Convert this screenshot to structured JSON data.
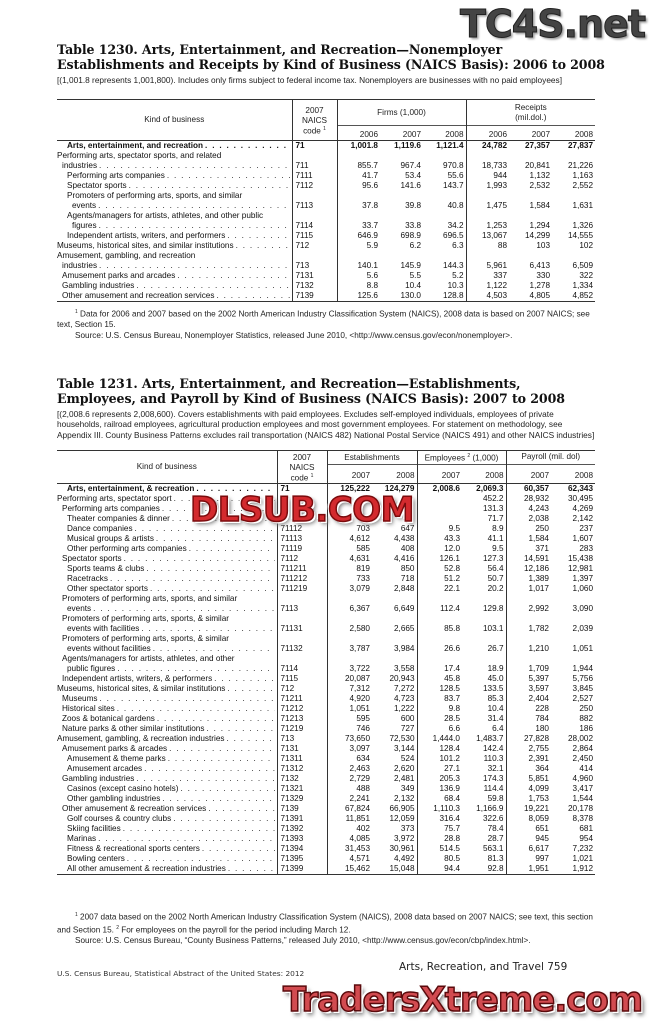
{
  "t1230": {
    "title_line1": "Table 1230. Arts, Entertainment, and Recreation—Nonemployer",
    "title_line2": "Establishments and Receipts by Kind of Business (NAICS Basis): 2006 to 2008",
    "headnote": "[(1,001.8 represents 1,001,800). Includes only firms subject to federal income tax. Nonemployers are businesses with no  paid employees]",
    "headers": {
      "kind": "Kind of business",
      "code_l1": "2007",
      "code_l2": "NAICS",
      "code_l3": "code",
      "code_sup": "1",
      "group1": "Firms (1,000)",
      "group2_l1": "Receipts",
      "group2_l2": "(mil.dol.)",
      "years": [
        "2006",
        "2007",
        "2008",
        "2006",
        "2007",
        "2008"
      ]
    },
    "rows": [
      {
        "label": "Arts, entertainment, and recreation",
        "code": "71",
        "v": [
          "1,001.8",
          "1,119.6",
          "1,121.4",
          "24,782",
          "27,357",
          "27,837"
        ],
        "lvl": 2,
        "bold": true
      },
      {
        "pre": "Performing arts, spectator sports, and related",
        "label": "industries",
        "code": "711",
        "v": [
          "855.7",
          "967.4",
          "970.8",
          "18,733",
          "20,841",
          "21,226"
        ],
        "lvl": 0
      },
      {
        "label": "Performing arts companies",
        "code": "7111",
        "v": [
          "41.7",
          "53.4",
          "55.6",
          "944",
          "1,132",
          "1,163"
        ],
        "lvl": 2
      },
      {
        "label": "Spectator sports",
        "code": "7112",
        "v": [
          "95.6",
          "141.6",
          "143.7",
          "1,993",
          "2,532",
          "2,552"
        ],
        "lvl": 2
      },
      {
        "pre": "Promoters of performing arts, sports, and similar",
        "label": "events",
        "code": "7113",
        "v": [
          "37.8",
          "39.8",
          "40.8",
          "1,475",
          "1,584",
          "1,631"
        ],
        "lvl": 2
      },
      {
        "pre": "Agents/managers for artists, athletes, and other public",
        "label": "figures",
        "code": "7114",
        "v": [
          "33.7",
          "33.8",
          "34.2",
          "1,253",
          "1,294",
          "1,326"
        ],
        "lvl": 2
      },
      {
        "label": "Independent artists, writers, and performers",
        "code": "7115",
        "v": [
          "646.9",
          "698.9",
          "696.5",
          "13,067",
          "14,299",
          "14,555"
        ],
        "lvl": 2
      },
      {
        "label": "Museums, historical sites, and similar institutions",
        "code": "712",
        "v": [
          "5.9",
          "6.2",
          "6.3",
          "88",
          "103",
          "102"
        ],
        "lvl": 0
      },
      {
        "pre": "Amusement, gambling, and recreation",
        "label": "industries",
        "code": "713",
        "v": [
          "140.1",
          "145.9",
          "144.3",
          "5,961",
          "6,413",
          "6,509"
        ],
        "lvl": 0
      },
      {
        "label": "Amusement parks and arcades",
        "code": "7131",
        "v": [
          "5.6",
          "5.5",
          "5.2",
          "337",
          "330",
          "322"
        ],
        "lvl": 1
      },
      {
        "label": "Gambling industries",
        "code": "7132",
        "v": [
          "8.8",
          "10.4",
          "10.3",
          "1,122",
          "1,278",
          "1,334"
        ],
        "lvl": 1
      },
      {
        "label": "Other amusement and recreation services",
        "code": "7139",
        "v": [
          "125.6",
          "130.0",
          "128.8",
          "4,503",
          "4,805",
          "4,852"
        ],
        "lvl": 1
      }
    ],
    "footnote1_sup": "1",
    "footnote1": " Data for 2006 and 2007 based on the 2002 North American Industry Classification System (NAICS), 2008 data is based on 2007 NAICS; see text, Section 15.",
    "source": "Source: U.S. Census Bureau, Nonemployer Statistics, released June 2010, <http://www.census.gov/econ/nonemployer>."
  },
  "t1231": {
    "title_line1": "Table 1231. Arts, Entertainment, and Recreation—Establishments,",
    "title_line2": "Employees, and Payroll by Kind of Business (NAICS Basis): 2007 to 2008",
    "headnote": "[(2,008.6 represents 2,008,600). Covers establishments with paid employees. Excludes self-employed individuals, employees of private households, railroad employees, agricultural production employees and most government employees. For statement on methodology, see Appendix III. County Business Patterns excludes rail transportation (NAICS 482) National Postal Service (NAICS 491) and other NAICS industries]",
    "headers": {
      "kind": "Kind of business",
      "code_l1": "2007",
      "code_l2": "NAICS",
      "code_l3": "code",
      "code_sup": "1",
      "group1": "Establishments",
      "group2": "Employees",
      "group2_sup": "2",
      "group2_unit": "(1,000)",
      "group3": "Payroll (mil. dol)",
      "years": [
        "2007",
        "2008",
        "2007",
        "2008",
        "2007",
        "2008"
      ]
    },
    "rows": [
      {
        "label": "Arts, entertainment, & recreation",
        "code": "71",
        "v": [
          "125,222",
          "124,279",
          "2,008.6",
          "2,069.3",
          "60,357",
          "62,343"
        ],
        "lvl": 2,
        "bold": true
      },
      {
        "label": "Performing arts, spectator sport",
        "code": "",
        "v": [
          "",
          "",
          "",
          "452.2",
          "28,932",
          "30,495"
        ],
        "lvl": 0
      },
      {
        "label": "Performing arts companies",
        "code": "",
        "v": [
          "",
          "",
          "",
          "131.3",
          "4,243",
          "4,269"
        ],
        "lvl": 1
      },
      {
        "label": "Theater companies & dinner",
        "code": "",
        "v": [
          "",
          "",
          "",
          "71.7",
          "2,038",
          "2,142"
        ],
        "lvl": 2
      },
      {
        "label": "Dance companies",
        "code": "71112",
        "v": [
          "703",
          "647",
          "9.5",
          "8.9",
          "250",
          "237"
        ],
        "lvl": 2
      },
      {
        "label": "Musical groups & artists",
        "code": "71113",
        "v": [
          "4,612",
          "4,438",
          "43.3",
          "41.1",
          "1,584",
          "1,607"
        ],
        "lvl": 2
      },
      {
        "label": "Other performing arts companies",
        "code": "71119",
        "v": [
          "585",
          "408",
          "12.0",
          "9.5",
          "371",
          "283"
        ],
        "lvl": 2
      },
      {
        "label": "Spectator sports",
        "code": "7112",
        "v": [
          "4,631",
          "4,416",
          "126.1",
          "127.3",
          "14,591",
          "15,438"
        ],
        "lvl": 1
      },
      {
        "label": "Sports teams & clubs",
        "code": "711211",
        "v": [
          "819",
          "850",
          "52.8",
          "56.4",
          "12,186",
          "12,981"
        ],
        "lvl": 2
      },
      {
        "label": "Racetracks",
        "code": "711212",
        "v": [
          "733",
          "718",
          "51.2",
          "50.7",
          "1,389",
          "1,397"
        ],
        "lvl": 2
      },
      {
        "label": "Other spectator sports",
        "code": "711219",
        "v": [
          "3,079",
          "2,848",
          "22.1",
          "20.2",
          "1,017",
          "1,060"
        ],
        "lvl": 2
      },
      {
        "pre": "Promoters of performing arts, sports, and similar",
        "label": "events",
        "code": "7113",
        "v": [
          "6,367",
          "6,649",
          "112.4",
          "129.8",
          "2,992",
          "3,090"
        ],
        "lvl": 1
      },
      {
        "pre": "Promoters of performing arts, sports, & similar",
        "label": "events with facilities",
        "code": "71131",
        "v": [
          "2,580",
          "2,665",
          "85.8",
          "103.1",
          "1,782",
          "2,039"
        ],
        "lvl": 1
      },
      {
        "pre": "Promoters of performing arts, sports, & similar",
        "label": "events without facilities",
        "code": "71132",
        "v": [
          "3,787",
          "3,984",
          "26.6",
          "26.7",
          "1,210",
          "1,051"
        ],
        "lvl": 1
      },
      {
        "pre": "Agents/managers for artists, athletes, and other",
        "label": "public figures",
        "code": "7114",
        "v": [
          "3,722",
          "3,558",
          "17.4",
          "18.9",
          "1,709",
          "1,944"
        ],
        "lvl": 1
      },
      {
        "label": "Independent artists, writers, & performers",
        "code": "7115",
        "v": [
          "20,087",
          "20,943",
          "45.8",
          "45.0",
          "5,397",
          "5,756"
        ],
        "lvl": 1
      },
      {
        "label": "Museums, historical sites, & similar institutions",
        "code": "712",
        "v": [
          "7,312",
          "7,272",
          "128.5",
          "133.5",
          "3,597",
          "3,845"
        ],
        "lvl": 0
      },
      {
        "label": "Museums",
        "code": "71211",
        "v": [
          "4,920",
          "4,723",
          "83.7",
          "85.3",
          "2,404",
          "2,527"
        ],
        "lvl": 1
      },
      {
        "label": "Historical sites",
        "code": "71212",
        "v": [
          "1,051",
          "1,222",
          "9.8",
          "10.4",
          "228",
          "250"
        ],
        "lvl": 1
      },
      {
        "label": "Zoos & botanical gardens",
        "code": "71213",
        "v": [
          "595",
          "600",
          "28.5",
          "31.4",
          "784",
          "882"
        ],
        "lvl": 1
      },
      {
        "label": "Nature parks & other similar institutions",
        "code": "71219",
        "v": [
          "746",
          "727",
          "6.6",
          "6.4",
          "180",
          "186"
        ],
        "lvl": 1
      },
      {
        "label": "Amusement, gambling, & recreation industries",
        "code": "713",
        "v": [
          "73,650",
          "72,530",
          "1,444.0",
          "1,483.7",
          "27,828",
          "28,002"
        ],
        "lvl": 0
      },
      {
        "label": "Amusement parks & arcades",
        "code": "7131",
        "v": [
          "3,097",
          "3,144",
          "128.4",
          "142.4",
          "2,755",
          "2,864"
        ],
        "lvl": 1
      },
      {
        "label": "Amusement & theme parks",
        "code": "71311",
        "v": [
          "634",
          "524",
          "101.2",
          "110.3",
          "2,391",
          "2,450"
        ],
        "lvl": 2
      },
      {
        "label": "Amusement arcades",
        "code": "71312",
        "v": [
          "2,463",
          "2,620",
          "27.1",
          "32.1",
          "364",
          "414"
        ],
        "lvl": 2
      },
      {
        "label": "Gambling industries",
        "code": "7132",
        "v": [
          "2,729",
          "2,481",
          "205.3",
          "174.3",
          "5,851",
          "4,960"
        ],
        "lvl": 1
      },
      {
        "label": "Casinos (except casino hotels)",
        "code": "71321",
        "v": [
          "488",
          "349",
          "136.9",
          "114.4",
          "4,099",
          "3,417"
        ],
        "lvl": 2
      },
      {
        "label": "Other gambling industries",
        "code": "71329",
        "v": [
          "2,241",
          "2,132",
          "68.4",
          "59.8",
          "1,753",
          "1,544"
        ],
        "lvl": 2
      },
      {
        "label": "Other amusement & recreation services",
        "code": "7139",
        "v": [
          "67,824",
          "66,905",
          "1,110.3",
          "1,166.9",
          "19,221",
          "20,178"
        ],
        "lvl": 1
      },
      {
        "label": "Golf courses & country clubs",
        "code": "71391",
        "v": [
          "11,851",
          "12,059",
          "316.4",
          "322.6",
          "8,059",
          "8,378"
        ],
        "lvl": 2
      },
      {
        "label": "Skiing facilities",
        "code": "71392",
        "v": [
          "402",
          "373",
          "75.7",
          "78.4",
          "651",
          "681"
        ],
        "lvl": 2
      },
      {
        "label": "Marinas",
        "code": "71393",
        "v": [
          "4,085",
          "3,972",
          "28.8",
          "28.7",
          "945",
          "954"
        ],
        "lvl": 2
      },
      {
        "label": "Fitness & recreational sports centers",
        "code": "71394",
        "v": [
          "31,453",
          "30,961",
          "514.5",
          "563.1",
          "6,617",
          "7,232"
        ],
        "lvl": 2
      },
      {
        "label": "Bowling centers",
        "code": "71395",
        "v": [
          "4,571",
          "4,492",
          "80.5",
          "81.3",
          "997",
          "1,021"
        ],
        "lvl": 2
      },
      {
        "label": "All other amusement & recreation industries",
        "code": "71399",
        "v": [
          "15,462",
          "15,048",
          "94.4",
          "92.8",
          "1,951",
          "1,912"
        ],
        "lvl": 2
      }
    ],
    "footnote1_sup": "1",
    "footnote1": " 2007 data based on the 2002 North American Industry Classification System (NAICS), 2008 data based on 2007 NAICS; see text, this section and Section 15.",
    "footnote2_sup": "2",
    "footnote2": " For employees on the payroll for the period including March 12.",
    "source": "Source: U.S. Census Bureau, “County Business Patterns,” released July 2010, <http://www.census.gov/econ/cbp/index.html>."
  },
  "footer": {
    "left": "U.S. Census Bureau, Statistical Abstract of the United States: 2012",
    "right": "Arts, Recreation, and Travel  759"
  },
  "watermarks": {
    "top_right": "TC4S.net",
    "middle": "DLSUB.COM",
    "bottom": "TradersXtreme.com"
  }
}
